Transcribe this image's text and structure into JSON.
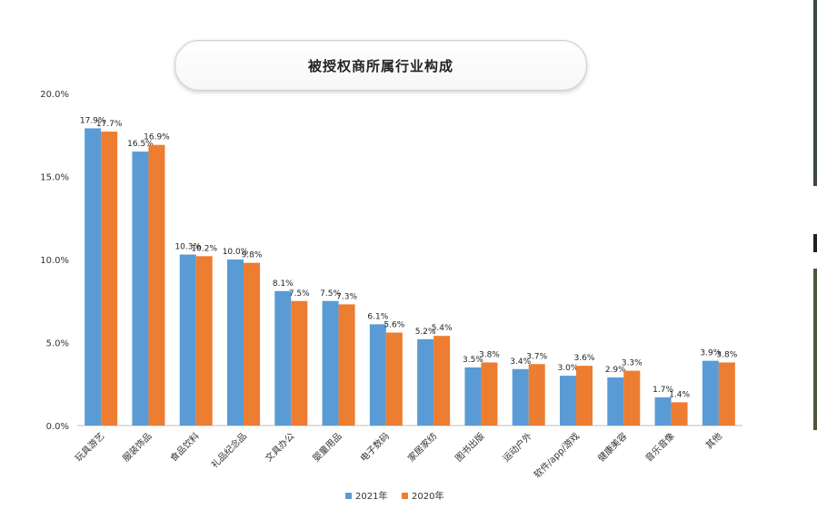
{
  "chart_data": {
    "type": "bar",
    "title": "被授权商所属行业构成",
    "categories": [
      "玩具游艺",
      "服装饰品",
      "食品饮料",
      "礼品纪念品",
      "文具办公",
      "婴童用品",
      "电子数码",
      "家居家纺",
      "图书出版",
      "运动户外",
      "软件/app/游戏",
      "健康美容",
      "音乐音像",
      "其他"
    ],
    "series": [
      {
        "name": "2021年",
        "color": "#5b9bd5",
        "values": [
          17.9,
          16.5,
          10.3,
          10.0,
          8.1,
          7.5,
          6.1,
          5.2,
          3.5,
          3.4,
          3.0,
          2.9,
          1.7,
          3.9
        ],
        "labels": [
          "17.9%",
          "16.5%",
          "10.3%",
          "10.0%",
          "8.1%",
          "7.5%",
          "6.1%",
          "5.2%",
          "3.5%",
          "3.4%",
          "3.0%",
          "2.9%",
          "1.7%",
          "3.9%"
        ]
      },
      {
        "name": "2020年",
        "color": "#ed7d31",
        "values": [
          17.7,
          16.9,
          10.2,
          9.8,
          7.5,
          7.3,
          5.6,
          5.4,
          3.8,
          3.7,
          3.6,
          3.3,
          1.4,
          3.8
        ],
        "labels": [
          "17.7%",
          "16.9%",
          "10.2%",
          "9.8%",
          "7.5%",
          "7.3%",
          "5.6%",
          "5.4%",
          "3.8%",
          "3.7%",
          "3.6%",
          "3.3%",
          "1.4%",
          "3.8%"
        ]
      }
    ],
    "yticks": [
      0,
      5,
      10,
      15,
      20
    ],
    "ytick_labels": [
      "0.0%",
      "5.0%",
      "10.0%",
      "15.0%",
      "20.0%"
    ],
    "ylim": [
      0,
      20
    ],
    "grid": false,
    "legend_position": "bottom-center"
  }
}
